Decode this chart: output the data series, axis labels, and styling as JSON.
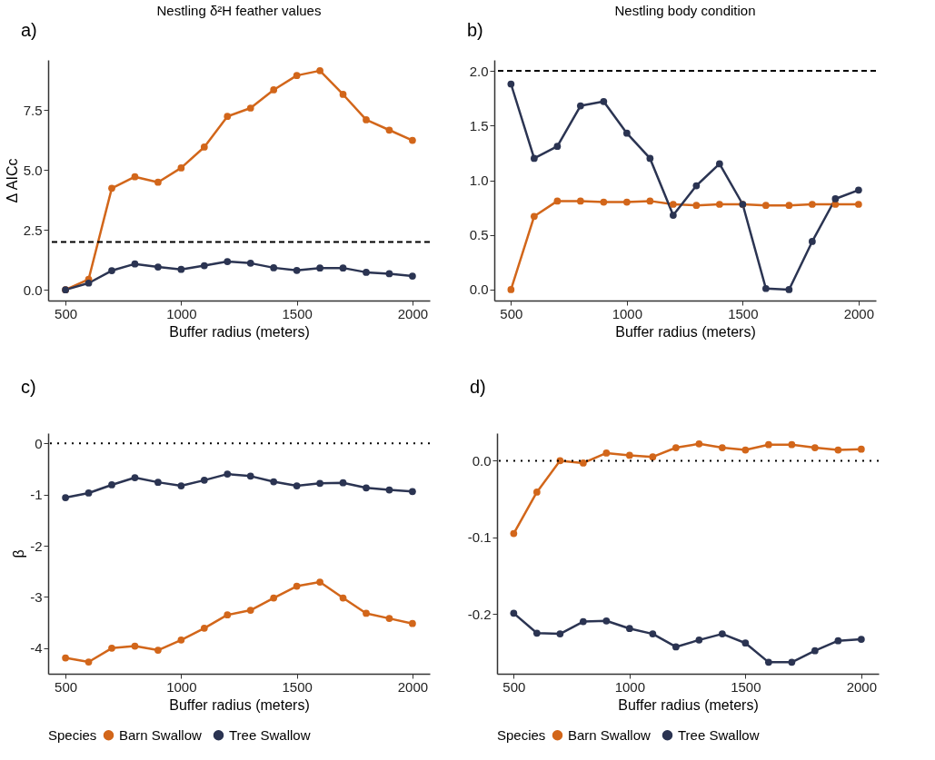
{
  "chart_data": [
    {
      "type": "line",
      "title": "Nestling δ²H feather values",
      "annotations": [
        "a)"
      ],
      "ylabel": "Δ AICc",
      "xlabel": "Buffer radius (meters)",
      "x": [
        500,
        600,
        700,
        800,
        900,
        1000,
        1100,
        1200,
        1300,
        1400,
        1500,
        1600,
        1700,
        1800,
        1900,
        2000
      ],
      "series": [
        {
          "color": "#d2661a",
          "values": [
            0,
            0.44,
            4.24,
            4.72,
            4.49,
            5.09,
            5.96,
            7.24,
            7.59,
            8.35,
            8.95,
            9.15,
            8.16,
            7.1,
            6.67,
            6.24
          ]
        },
        {
          "color": "#2b3452",
          "values": [
            0,
            0.28,
            0.8,
            1.08,
            0.95,
            0.85,
            1.01,
            1.18,
            1.11,
            0.92,
            0.81,
            0.91,
            0.91,
            0.73,
            0.67,
            0.57
          ]
        }
      ],
      "xlim": [
        425,
        2075
      ],
      "xticks": [
        500,
        1000,
        1500,
        2000
      ],
      "ylim": [
        -0.45,
        9.6
      ],
      "yticks": [
        {
          "value": 0,
          "label": "0.0"
        },
        2.5,
        {
          "value": 5,
          "label": "5.0"
        },
        7.5
      ],
      "ref_lines": [
        {
          "axis": "y",
          "value": 2,
          "line_style": "dashed",
          "color": "#000000"
        }
      ],
      "marker": "circle",
      "line_style": "solid",
      "grid": false,
      "legend": false
    },
    {
      "type": "line",
      "title": "Nestling body condition",
      "annotations": [
        "b)"
      ],
      "xlabel": "Buffer radius (meters)",
      "x": [
        500,
        600,
        700,
        800,
        900,
        1000,
        1100,
        1200,
        1300,
        1400,
        1500,
        1600,
        1700,
        1800,
        1900,
        2000
      ],
      "series": [
        {
          "color": "#d2661a",
          "values": [
            0,
            0.67,
            0.81,
            0.81,
            0.8,
            0.8,
            0.81,
            0.78,
            0.77,
            0.78,
            0.78,
            0.77,
            0.77,
            0.78,
            0.78,
            0.78
          ]
        },
        {
          "color": "#2b3452",
          "values": [
            1.88,
            1.2,
            1.31,
            1.68,
            1.72,
            1.43,
            1.2,
            0.68,
            0.95,
            1.15,
            0.78,
            0.01,
            0,
            0.44,
            0.83,
            0.91
          ]
        }
      ],
      "xlim": [
        428,
        2075
      ],
      "xticks": [
        500,
        1000,
        1500,
        2000
      ],
      "ylim": [
        -0.1,
        2.1
      ],
      "yticks": [
        {
          "value": 0,
          "label": "0.0"
        },
        0.5,
        {
          "value": 1,
          "label": "1.0"
        },
        1.5,
        {
          "value": 2,
          "label": "2.0"
        }
      ],
      "ref_lines": [
        {
          "axis": "y",
          "value": 2,
          "line_style": "dashed",
          "color": "#000000"
        }
      ],
      "marker": "circle",
      "line_style": "solid",
      "grid": false,
      "legend": false
    },
    {
      "type": "line",
      "annotations": [
        "c)"
      ],
      "ylabel": "β",
      "xlabel": "Buffer radius (meters)",
      "legend_title": "Species",
      "x": [
        500,
        600,
        700,
        800,
        900,
        1000,
        1100,
        1200,
        1300,
        1400,
        1500,
        1600,
        1700,
        1800,
        1900,
        2000
      ],
      "series": [
        {
          "name": "Barn Swallow",
          "color": "#d2661a",
          "values": [
            -4.19,
            -4.27,
            -4.0,
            -3.96,
            -4.04,
            -3.84,
            -3.61,
            -3.35,
            -3.26,
            -3.02,
            -2.79,
            -2.71,
            -3.02,
            -3.32,
            -3.42,
            -3.52
          ]
        },
        {
          "name": "Tree Swallow",
          "color": "#2b3452",
          "values": [
            -1.06,
            -0.97,
            -0.81,
            -0.67,
            -0.76,
            -0.83,
            -0.72,
            -0.6,
            -0.64,
            -0.75,
            -0.83,
            -0.78,
            -0.77,
            -0.87,
            -0.91,
            -0.94
          ]
        }
      ],
      "xlim": [
        425,
        2075
      ],
      "xticks": [
        500,
        1000,
        1500,
        2000
      ],
      "ylim": [
        -4.5,
        0.2
      ],
      "yticks": [
        -4,
        -3,
        -2,
        -1,
        0
      ],
      "ref_lines": [
        {
          "axis": "y",
          "value": 0,
          "line_style": "dotted",
          "color": "#000000"
        }
      ],
      "marker": "circle",
      "line_style": "solid",
      "grid": false,
      "legend": "bottom"
    },
    {
      "type": "line",
      "annotations": [
        "d)"
      ],
      "xlabel": "Buffer radius (meters)",
      "legend_title": "Species",
      "x": [
        500,
        600,
        700,
        800,
        900,
        1000,
        1100,
        1200,
        1300,
        1400,
        1500,
        1600,
        1700,
        1800,
        1900,
        2000
      ],
      "series": [
        {
          "name": "Barn Swallow",
          "color": "#d2661a",
          "values": [
            -0.095,
            -0.041,
            0.0,
            -0.003,
            0.01,
            0.007,
            0.005,
            0.017,
            0.022,
            0.017,
            0.014,
            0.021,
            0.021,
            0.017,
            0.014,
            0.015
          ]
        },
        {
          "name": "Tree Swallow",
          "color": "#2b3452",
          "values": [
            -0.199,
            -0.225,
            -0.226,
            -0.21,
            -0.209,
            -0.219,
            -0.226,
            -0.243,
            -0.234,
            -0.226,
            -0.238,
            -0.263,
            -0.263,
            -0.248,
            -0.235,
            -0.233
          ]
        }
      ],
      "xlim": [
        428,
        2075
      ],
      "xticks": [
        500,
        1000,
        1500,
        2000
      ],
      "ylim": [
        -0.278,
        0.036
      ],
      "yticks": [
        {
          "value": -0.2,
          "label": "-0.2"
        },
        {
          "value": -0.1,
          "label": "-0.1"
        },
        {
          "value": 0,
          "label": "0.0"
        }
      ],
      "ref_lines": [
        {
          "axis": "y",
          "value": 0,
          "line_style": "dotted",
          "color": "#000000"
        }
      ],
      "marker": "circle",
      "line_style": "solid",
      "grid": false,
      "legend": "bottom"
    }
  ]
}
